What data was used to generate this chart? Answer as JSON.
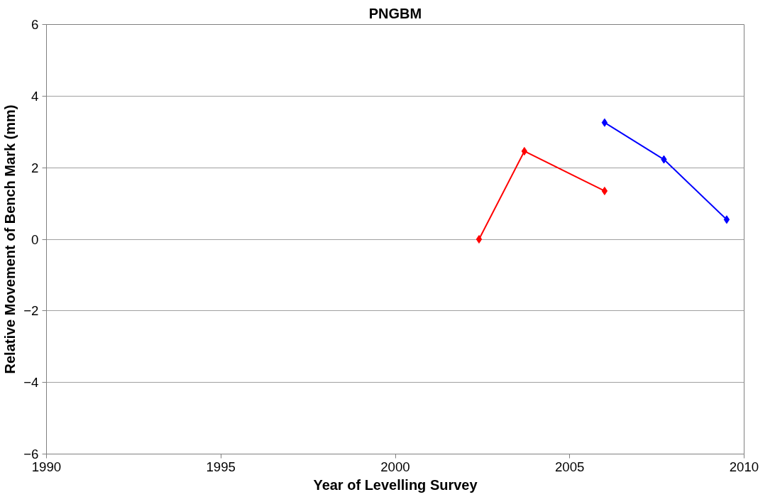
{
  "chart_data": {
    "type": "line",
    "title": "PNGBM",
    "xlabel": "Year of Levelling Survey",
    "ylabel": "Relative Movement of Bench Mark (mm)",
    "series": [
      {
        "color": "#ff0000",
        "x": [
          2002.4,
          2003.7,
          2006.0
        ],
        "values": [
          0.0,
          2.46,
          1.35
        ]
      },
      {
        "color": "#0000ff",
        "x": [
          2006.0,
          2007.7,
          2009.5
        ],
        "values": [
          3.26,
          2.23,
          0.55
        ]
      }
    ],
    "xlim": [
      1990,
      2010
    ],
    "xticks": [
      1990,
      1995,
      2000,
      2005,
      2010
    ],
    "ylim": [
      -6,
      6
    ],
    "yticks": [
      -6,
      -4,
      -2,
      0,
      2,
      4,
      6
    ],
    "grid": "y",
    "marker": "diamond",
    "line_style": "solid"
  }
}
